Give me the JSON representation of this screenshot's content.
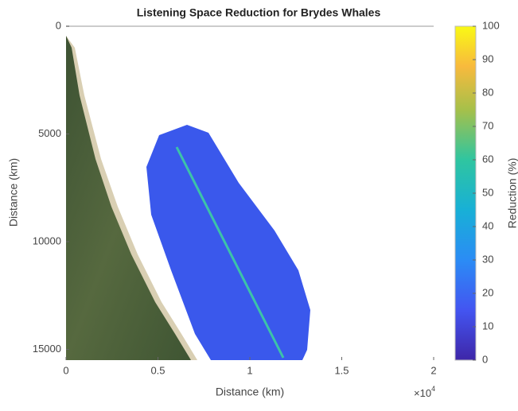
{
  "chart_data": {
    "type": "heatmap",
    "title": "Listening Space Reduction for Brydes Whales",
    "xlabel": "Distance (km)",
    "ylabel": "Distance (km)",
    "xlim": [
      0,
      20000
    ],
    "xticks": [
      0,
      {
        "value": 5000,
        "label": "0.5"
      },
      {
        "value": 10000,
        "label": "1"
      },
      {
        "value": 15000,
        "label": "1.5"
      },
      {
        "value": 20000,
        "label": "2"
      }
    ],
    "x_multiplier": {
      "base": "×10",
      "exponent": "4"
    },
    "ylim": [
      0,
      15500
    ],
    "yticks": [
      0,
      5000,
      10000,
      15000
    ],
    "colorbar": {
      "label": "Reduction (%)",
      "lim": [
        0,
        100
      ],
      "ticks": [
        0,
        10,
        20,
        30,
        40,
        50,
        60,
        70,
        80,
        90,
        100
      ]
    }
  }
}
